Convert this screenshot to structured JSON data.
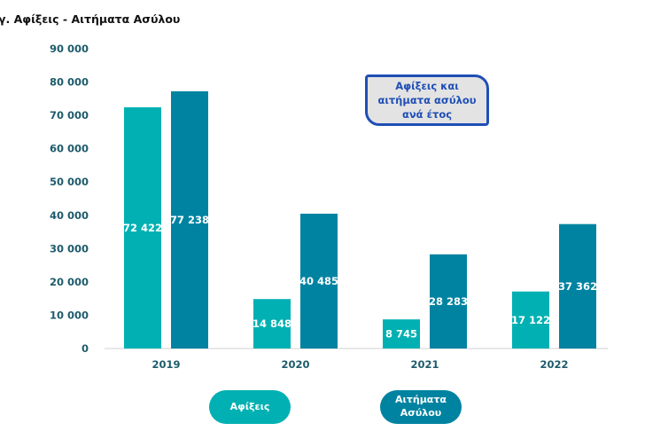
{
  "chart_data": {
    "type": "bar",
    "title": "γ. Αφίξεις - Αιτήματα Ασύλου",
    "annotation": "Αφίξεις και αιτήματα ασύλου ανά έτος",
    "categories": [
      "2019",
      "2020",
      "2021",
      "2022"
    ],
    "series": [
      {
        "name": "Αφίξεις",
        "color": "#00b0b2",
        "values": [
          72422,
          14848,
          8745,
          17122
        ],
        "labels": [
          "72 422",
          "14 848",
          "8 745",
          "17 122"
        ]
      },
      {
        "name": "Αιτήματα Ασύλου",
        "color": "#0083a1",
        "values": [
          77238,
          40485,
          28283,
          37362
        ],
        "labels": [
          "77 238",
          "40 485",
          "28 283",
          "37 362"
        ]
      }
    ],
    "ylim": [
      0,
      90000
    ],
    "yticks": [
      0,
      10000,
      20000,
      30000,
      40000,
      50000,
      60000,
      70000,
      80000,
      90000
    ],
    "ytick_labels": [
      "0",
      "10 000",
      "20 000",
      "30 000",
      "40 000",
      "50 000",
      "60 000",
      "70 000",
      "80 000",
      "90 000"
    ],
    "grid": false,
    "legend": "bottom"
  }
}
